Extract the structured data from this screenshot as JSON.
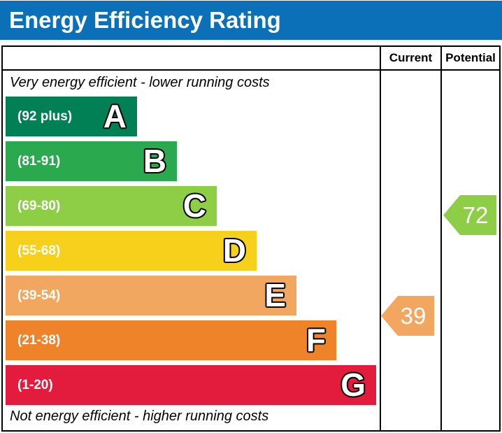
{
  "title": "Energy Efficiency Rating",
  "colors": {
    "header_bg": "#0b70b8",
    "border": "#000000"
  },
  "table": {
    "column_headers": {
      "current": "Current",
      "potential": "Potential"
    },
    "caption_top": "Very energy efficient - lower running costs",
    "caption_bottom": "Not energy efficient - higher running costs"
  },
  "chart_data": {
    "type": "bar",
    "subtype": "epc-energy-efficiency-rating",
    "orientation": "horizontal",
    "title": "Energy Efficiency Rating",
    "bands": [
      {
        "letter": "A",
        "range": "(92 plus)",
        "min": 92,
        "max": 100,
        "color": "#008054"
      },
      {
        "letter": "B",
        "range": "(81-91)",
        "min": 81,
        "max": 91,
        "color": "#2aa94f"
      },
      {
        "letter": "C",
        "range": "(69-80)",
        "min": 69,
        "max": 80,
        "color": "#8dce46"
      },
      {
        "letter": "D",
        "range": "(55-68)",
        "min": 55,
        "max": 68,
        "color": "#f6d01a"
      },
      {
        "letter": "E",
        "range": "(39-54)",
        "min": 39,
        "max": 54,
        "color": "#f1a75f"
      },
      {
        "letter": "F",
        "range": "(21-38)",
        "min": 21,
        "max": 38,
        "color": "#ee8329"
      },
      {
        "letter": "G",
        "range": "(1-20)",
        "min": 1,
        "max": 20,
        "color": "#e31c3d"
      }
    ],
    "current": {
      "value": "39",
      "band": "E",
      "color": "#f1a75f"
    },
    "potential": {
      "value": "72",
      "band": "C",
      "color": "#8dce46"
    }
  }
}
